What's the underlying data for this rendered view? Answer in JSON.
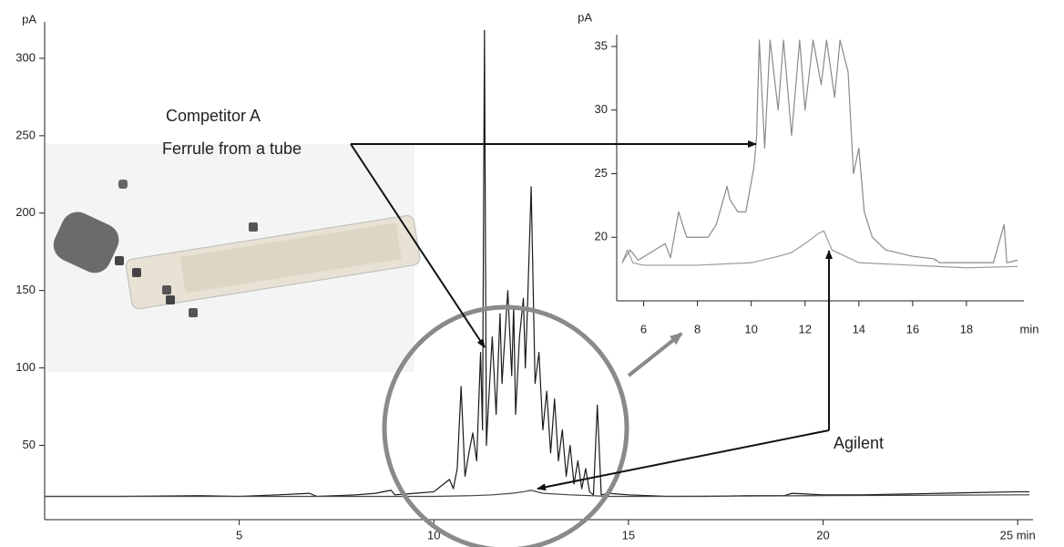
{
  "chart_data": [
    {
      "type": "line",
      "y_label": "pA",
      "xlim": [
        0,
        25.3
      ],
      "xticks": [
        5,
        10,
        15,
        20,
        {
          "value": 25,
          "label": "25 min"
        }
      ],
      "ylim": [
        2,
        320
      ],
      "yticks": [
        50,
        100,
        150,
        200,
        250,
        300
      ],
      "annotations": [
        "Competitor A",
        "Ferrule from a tube",
        "Agilent"
      ],
      "series": [
        {
          "color": "#1a1a1a",
          "x": [
            0,
            2,
            4,
            5,
            6,
            6.8,
            7,
            8,
            8.5,
            8.9,
            9,
            9.5,
            10,
            10.2,
            10.4,
            10.5,
            10.6,
            10.7,
            10.8,
            10.9,
            11,
            11.1,
            11.2,
            11.25,
            11.3,
            11.35,
            11.4,
            11.5,
            11.6,
            11.7,
            11.75,
            11.8,
            11.9,
            12,
            12.05,
            12.1,
            12.2,
            12.3,
            12.35,
            12.4,
            12.5,
            12.6,
            12.7,
            12.8,
            12.9,
            13,
            13.1,
            13.2,
            13.3,
            13.4,
            13.5,
            13.6,
            13.7,
            13.8,
            13.9,
            14,
            14.1,
            14.2,
            14.3,
            14.5,
            15,
            16,
            17,
            18,
            19,
            19.2,
            20,
            21,
            22,
            23,
            24,
            25,
            25.3
          ],
          "values": [
            17,
            17,
            17.5,
            17,
            18,
            19,
            17,
            18,
            19,
            21,
            18,
            19,
            20,
            24,
            28,
            22,
            35,
            88,
            30,
            45,
            58,
            40,
            110,
            60,
            318,
            50,
            75,
            120,
            70,
            135,
            90,
            110,
            150,
            95,
            140,
            70,
            120,
            145,
            100,
            135,
            217,
            90,
            110,
            60,
            85,
            45,
            80,
            40,
            60,
            30,
            50,
            25,
            40,
            22,
            35,
            20,
            18,
            76,
            18,
            19,
            18,
            17,
            17,
            17.5,
            17.5,
            19,
            18,
            18,
            18.5,
            19,
            19.5,
            20,
            20
          ]
        },
        {
          "color": "#444444",
          "x": [
            0,
            9,
            10,
            11,
            11.5,
            12,
            12.3,
            12.5,
            12.8,
            13.5,
            14.5,
            16,
            20,
            25,
            25.3
          ],
          "values": [
            17,
            17,
            17,
            17.5,
            18,
            19,
            20,
            21,
            19,
            18,
            17,
            17,
            17.5,
            18,
            18
          ]
        }
      ]
    },
    {
      "type": "line",
      "y_label": "pA",
      "x_label": "min",
      "xlim": [
        5,
        20
      ],
      "xticks": [
        6,
        8,
        10,
        12,
        14,
        16,
        18
      ],
      "ylim": [
        15,
        35.5
      ],
      "yticks": [
        20,
        25,
        30,
        35
      ],
      "series": [
        {
          "color": "#8a8a8a",
          "x": [
            5.2,
            5.5,
            5.8,
            6.8,
            7,
            7.3,
            7.6,
            8.4,
            8.7,
            9.1,
            9.2,
            9.5,
            9.8,
            10.1,
            10.2,
            10.3,
            10.5,
            10.7,
            11,
            11.2,
            11.5,
            11.8,
            12,
            12.3,
            12.6,
            12.8,
            13.1,
            13.3,
            13.6,
            13.8,
            14,
            14.2,
            14.5,
            15,
            16,
            16.8,
            17,
            18,
            19,
            19.4,
            19.5,
            19.9
          ],
          "values": [
            18,
            19,
            18.2,
            19.5,
            18.4,
            22,
            20,
            20,
            21,
            24,
            23,
            22,
            22,
            25.5,
            28,
            35.5,
            27,
            35.5,
            30,
            35.5,
            28,
            35.5,
            30,
            35.5,
            32,
            35.5,
            31,
            35.5,
            33,
            25,
            27,
            22,
            20,
            19,
            18.5,
            18.3,
            18,
            18,
            18,
            21,
            18,
            18.2
          ]
        },
        {
          "color": "#9a9a9a",
          "x": [
            5.2,
            5.4,
            5.6,
            6,
            8,
            10,
            11,
            11.5,
            12,
            12.5,
            12.7,
            13,
            13.5,
            14,
            16,
            18,
            19.9
          ],
          "values": [
            18,
            19,
            18,
            17.8,
            17.8,
            18,
            18.5,
            18.8,
            19.5,
            20.3,
            20.5,
            19,
            18.5,
            18,
            17.8,
            17.6,
            17.7
          ]
        }
      ]
    }
  ]
}
